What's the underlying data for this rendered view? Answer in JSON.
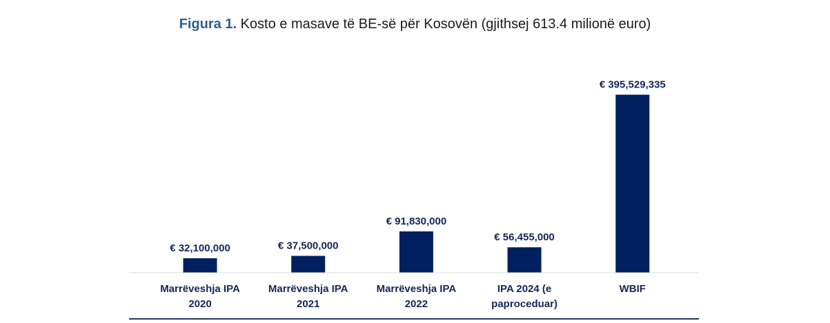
{
  "title": {
    "lead": "Figura 1.",
    "rest": " Kosto e masave të BE-së për Kosovën (gjithsej 613.4 milionë euro)"
  },
  "chart_data": {
    "type": "bar",
    "categories": [
      [
        "Marrëveshja IPA",
        "2020"
      ],
      [
        "Marrëveshja IPA",
        "2021"
      ],
      [
        "Marrëveshja IPA",
        "2022"
      ],
      [
        "IPA 2024 (e",
        "paproceduar)"
      ],
      [
        "WBIF"
      ]
    ],
    "values": [
      32100000,
      37500000,
      91830000,
      56455000,
      395529335
    ],
    "data_labels": [
      "€ 32,100,000",
      "€ 37,500,000",
      "€ 91,830,000",
      "€ 56,455,000",
      "€ 395,529,335"
    ],
    "ylim": [
      0,
      420000000
    ],
    "bar_color": "#002060",
    "label_color": "#142657",
    "axis_color": "#d9d9d9",
    "frame_line_color": "#1f3864"
  }
}
